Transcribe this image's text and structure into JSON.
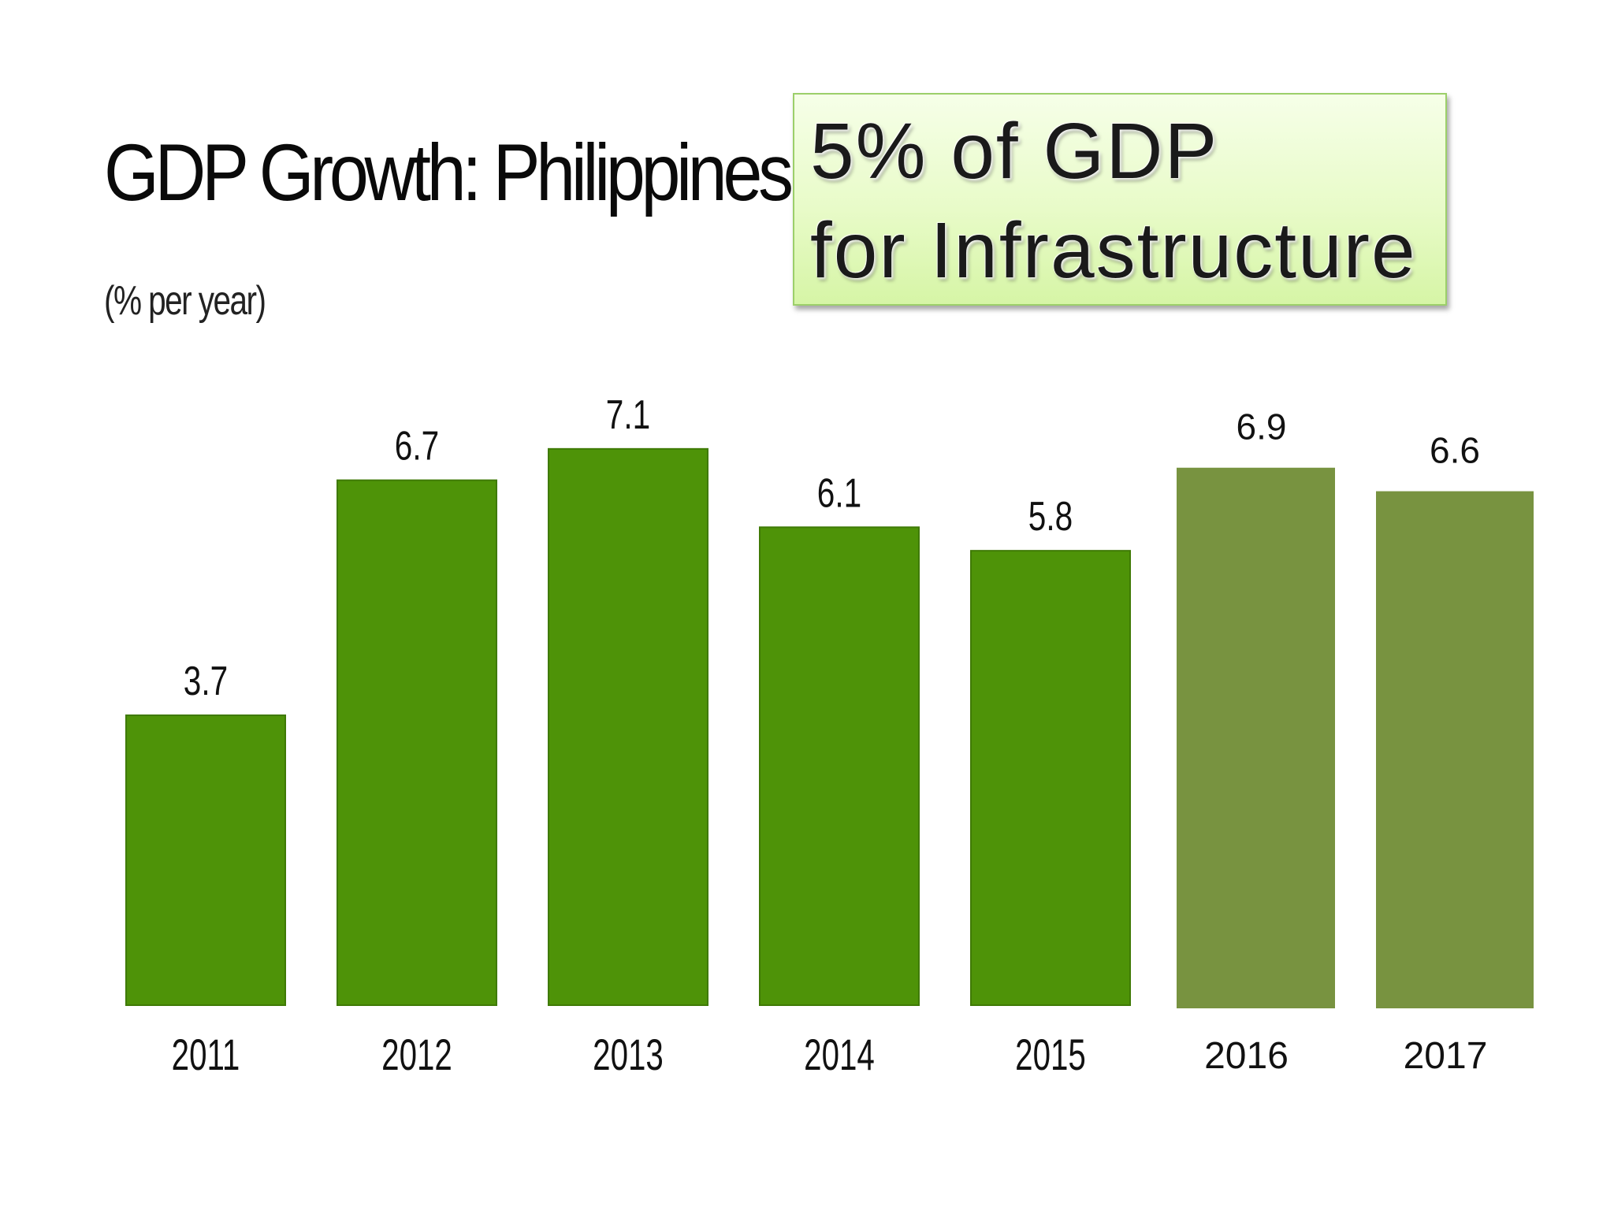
{
  "title": "GDP Growth: Philippines",
  "subtitle": "(% per year)",
  "callout": {
    "line1": "5% of GDP",
    "line2": "for Infrastructure"
  },
  "colors": {
    "actual_bar": "#4e9308",
    "forecast_bar": "#789340",
    "text": "#111111"
  },
  "chart_data": {
    "type": "bar",
    "title": "GDP Growth: Philippines",
    "ylabel": "(% per year)",
    "xlabel": "",
    "categories": [
      "2011",
      "2012",
      "2013",
      "2014",
      "2015",
      "2016",
      "2017"
    ],
    "values": [
      3.7,
      6.7,
      7.1,
      6.1,
      5.8,
      6.9,
      6.6
    ],
    "value_labels": [
      "3.7",
      "6.7",
      "7.1",
      "6.1",
      "5.8",
      "6.9",
      "6.6"
    ],
    "series_kind": [
      "actual",
      "actual",
      "actual",
      "actual",
      "actual",
      "target",
      "target"
    ],
    "ylim": [
      0,
      7.5
    ],
    "grid": false,
    "legend": "none"
  }
}
